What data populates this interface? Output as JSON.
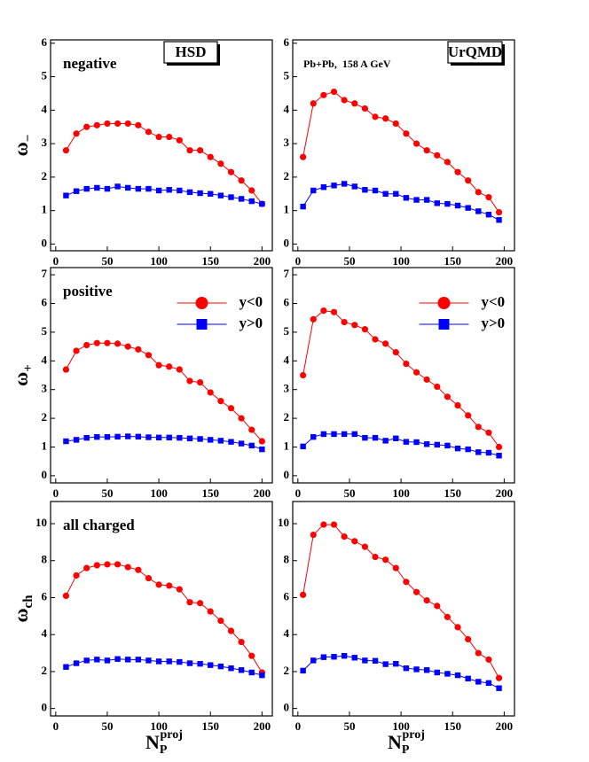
{
  "chart_data": [
    {
      "type": "line",
      "panel_label": "negative",
      "model_label": "HSD",
      "ylabel": "ω",
      "ylabel_sub": "−",
      "x": [
        10,
        20,
        30,
        40,
        50,
        60,
        70,
        80,
        90,
        100,
        110,
        120,
        130,
        140,
        150,
        160,
        170,
        180,
        190,
        200
      ],
      "xlim": [
        -5,
        210
      ],
      "xticks": [
        0,
        50,
        100,
        150,
        200
      ],
      "ylim": [
        -0.2,
        6.1
      ],
      "yticks": [
        0,
        1,
        2,
        3,
        4,
        5,
        6
      ],
      "series": [
        {
          "color": "#ff0000",
          "marker": "circle",
          "values": [
            2.8,
            3.3,
            3.5,
            3.55,
            3.6,
            3.6,
            3.6,
            3.55,
            3.35,
            3.2,
            3.2,
            3.1,
            2.8,
            2.8,
            2.6,
            2.4,
            2.15,
            1.9,
            1.6,
            1.2
          ]
        },
        {
          "color": "#0000ff",
          "marker": "square",
          "values": [
            1.45,
            1.58,
            1.65,
            1.68,
            1.65,
            1.72,
            1.68,
            1.65,
            1.65,
            1.6,
            1.62,
            1.6,
            1.55,
            1.52,
            1.5,
            1.45,
            1.4,
            1.35,
            1.28,
            1.2
          ]
        }
      ]
    },
    {
      "type": "line",
      "model_label": "UrQMD",
      "note": "Pb+Pb,  158 A GeV",
      "x": [
        5,
        15,
        25,
        35,
        45,
        55,
        65,
        75,
        85,
        95,
        105,
        115,
        125,
        135,
        145,
        155,
        165,
        175,
        185,
        195
      ],
      "xlim": [
        -5,
        210
      ],
      "xticks": [
        0,
        50,
        100,
        150,
        200
      ],
      "ylim": [
        -0.2,
        6.1
      ],
      "yticks": [
        0,
        1,
        2,
        3,
        4,
        5,
        6
      ],
      "series": [
        {
          "color": "#ff0000",
          "marker": "circle",
          "values": [
            2.6,
            4.2,
            4.45,
            4.55,
            4.3,
            4.2,
            4.05,
            3.8,
            3.75,
            3.6,
            3.3,
            3.0,
            2.8,
            2.65,
            2.45,
            2.15,
            1.9,
            1.55,
            1.4,
            0.95
          ]
        },
        {
          "color": "#0000ff",
          "marker": "square",
          "values": [
            1.12,
            1.6,
            1.7,
            1.75,
            1.8,
            1.72,
            1.62,
            1.6,
            1.5,
            1.5,
            1.38,
            1.32,
            1.32,
            1.22,
            1.2,
            1.15,
            1.08,
            0.98,
            0.88,
            0.72
          ]
        }
      ]
    },
    {
      "type": "line",
      "panel_label": "positive",
      "ylabel": "ω",
      "ylabel_sub": "+",
      "x": [
        10,
        20,
        30,
        40,
        50,
        60,
        70,
        80,
        90,
        100,
        110,
        120,
        130,
        140,
        150,
        160,
        170,
        180,
        190,
        200
      ],
      "xlim": [
        -5,
        210
      ],
      "xticks": [
        0,
        50,
        100,
        150,
        200
      ],
      "ylim": [
        -0.25,
        7.25
      ],
      "yticks": [
        0,
        1,
        2,
        3,
        4,
        5,
        6,
        7
      ],
      "series": [
        {
          "name": "y<0",
          "color": "#ff0000",
          "marker": "circle",
          "values": [
            3.7,
            4.35,
            4.55,
            4.62,
            4.62,
            4.6,
            4.5,
            4.4,
            4.2,
            3.85,
            3.8,
            3.7,
            3.3,
            3.25,
            2.9,
            2.6,
            2.35,
            2.0,
            1.6,
            1.2
          ]
        },
        {
          "name": "y>0",
          "color": "#0000ff",
          "marker": "square",
          "values": [
            1.2,
            1.25,
            1.32,
            1.35,
            1.35,
            1.36,
            1.37,
            1.36,
            1.34,
            1.33,
            1.33,
            1.32,
            1.3,
            1.28,
            1.25,
            1.22,
            1.18,
            1.12,
            1.05,
            0.92
          ]
        }
      ]
    },
    {
      "type": "line",
      "x": [
        5,
        15,
        25,
        35,
        45,
        55,
        65,
        75,
        85,
        95,
        105,
        115,
        125,
        135,
        145,
        155,
        165,
        175,
        185,
        195
      ],
      "xlim": [
        -5,
        210
      ],
      "xticks": [
        0,
        50,
        100,
        150,
        200
      ],
      "ylim": [
        -0.25,
        7.25
      ],
      "yticks": [
        0,
        1,
        2,
        3,
        4,
        5,
        6,
        7
      ],
      "series": [
        {
          "name": "y<0",
          "color": "#ff0000",
          "marker": "circle",
          "values": [
            3.5,
            5.45,
            5.75,
            5.7,
            5.35,
            5.25,
            5.1,
            4.75,
            4.6,
            4.3,
            3.9,
            3.6,
            3.35,
            3.1,
            2.75,
            2.45,
            2.1,
            1.7,
            1.5,
            1.0
          ]
        },
        {
          "name": "y>0",
          "color": "#0000ff",
          "marker": "square",
          "values": [
            1.02,
            1.35,
            1.45,
            1.45,
            1.45,
            1.45,
            1.32,
            1.32,
            1.22,
            1.3,
            1.18,
            1.17,
            1.1,
            1.08,
            1.05,
            0.95,
            0.92,
            0.82,
            0.8,
            0.7
          ]
        }
      ]
    },
    {
      "type": "line",
      "panel_label": "all charged",
      "ylabel": "ω",
      "ylabel_sub": "ch",
      "xlabel": "N",
      "xlabel_sub": "P",
      "xlabel_sup": "proj",
      "x": [
        10,
        20,
        30,
        40,
        50,
        60,
        70,
        80,
        90,
        100,
        110,
        120,
        130,
        140,
        150,
        160,
        170,
        180,
        190,
        200
      ],
      "xlim": [
        -5,
        210
      ],
      "xticks": [
        0,
        50,
        100,
        150,
        200
      ],
      "ylim": [
        -0.4,
        11.2
      ],
      "yticks": [
        0,
        2,
        4,
        6,
        8,
        10
      ],
      "series": [
        {
          "color": "#ff0000",
          "marker": "circle",
          "values": [
            6.1,
            7.2,
            7.6,
            7.75,
            7.8,
            7.8,
            7.65,
            7.5,
            7.05,
            6.7,
            6.65,
            6.45,
            5.75,
            5.7,
            5.25,
            4.75,
            4.2,
            3.6,
            2.85,
            1.95
          ]
        },
        {
          "color": "#0000ff",
          "marker": "square",
          "values": [
            2.25,
            2.45,
            2.6,
            2.65,
            2.6,
            2.68,
            2.65,
            2.65,
            2.6,
            2.55,
            2.55,
            2.52,
            2.45,
            2.42,
            2.35,
            2.28,
            2.18,
            2.08,
            1.95,
            1.8
          ]
        }
      ]
    },
    {
      "type": "line",
      "xlabel": "N",
      "xlabel_sub": "P",
      "xlabel_sup": "proj",
      "x": [
        5,
        15,
        25,
        35,
        45,
        55,
        65,
        75,
        85,
        95,
        105,
        115,
        125,
        135,
        145,
        155,
        165,
        175,
        185,
        195
      ],
      "xlim": [
        -5,
        210
      ],
      "xticks": [
        0,
        50,
        100,
        150,
        200
      ],
      "ylim": [
        -0.4,
        11.2
      ],
      "yticks": [
        0,
        2,
        4,
        6,
        8,
        10
      ],
      "series": [
        {
          "color": "#ff0000",
          "marker": "circle",
          "values": [
            6.15,
            9.4,
            9.95,
            9.95,
            9.3,
            9.05,
            8.75,
            8.2,
            8.05,
            7.6,
            6.85,
            6.3,
            5.85,
            5.55,
            4.95,
            4.4,
            3.75,
            3.0,
            2.65,
            1.65
          ]
        },
        {
          "color": "#0000ff",
          "marker": "square",
          "values": [
            2.05,
            2.6,
            2.78,
            2.8,
            2.85,
            2.75,
            2.6,
            2.58,
            2.4,
            2.42,
            2.18,
            2.12,
            2.08,
            1.95,
            1.88,
            1.8,
            1.62,
            1.45,
            1.38,
            1.1
          ]
        }
      ]
    }
  ]
}
